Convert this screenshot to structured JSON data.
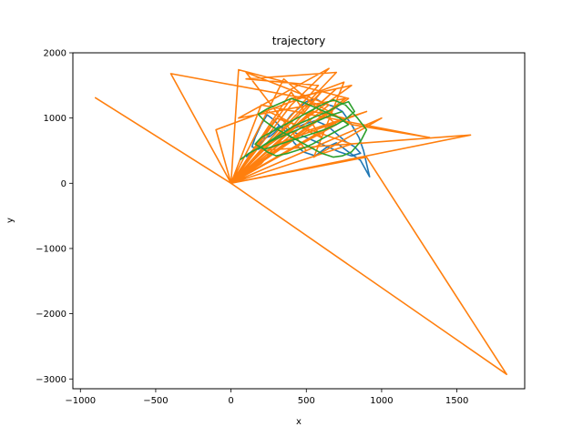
{
  "chart_data": {
    "type": "line",
    "title": "trajectory",
    "xlabel": "x",
    "ylabel": "y",
    "xlim": [
      -1050,
      1950
    ],
    "ylim": [
      -3150,
      2000
    ],
    "xticks": [
      -1000,
      -500,
      0,
      500,
      1000,
      1500
    ],
    "yticks": [
      -3000,
      -2000,
      -1000,
      0,
      1000,
      2000
    ],
    "xtick_labels": [
      "−1000",
      "−500",
      "0",
      "500",
      "1000",
      "1500"
    ],
    "ytick_labels": [
      "−3000",
      "−2000",
      "−1000",
      "0",
      "1000",
      "2000"
    ],
    "grid": false,
    "series": [
      {
        "color": "#1f77b4",
        "x": [
          100,
          150,
          200,
          260,
          300,
          350,
          400,
          450,
          500,
          560,
          620,
          680,
          740,
          800,
          850,
          880,
          900,
          920,
          860,
          780,
          700,
          640,
          560,
          480,
          420,
          380,
          330,
          280,
          240,
          200,
          160,
          140,
          180,
          240,
          320,
          400,
          480,
          560,
          640,
          700,
          760,
          820,
          860,
          800,
          720,
          640,
          560,
          480,
          400,
          320,
          260,
          200,
          160
        ],
        "y": [
          400,
          520,
          680,
          720,
          800,
          900,
          1050,
          1150,
          1250,
          1300,
          1220,
          1180,
          1100,
          900,
          700,
          500,
          300,
          100,
          350,
          480,
          620,
          560,
          420,
          480,
          620,
          760,
          860,
          980,
          1050,
          900,
          700,
          560,
          520,
          600,
          720,
          820,
          900,
          960,
          880,
          760,
          640,
          560,
          460,
          420,
          480,
          560,
          640,
          720,
          800,
          880,
          760,
          620,
          520
        ]
      },
      {
        "color": "#ff7f0e",
        "x": [
          0,
          -400,
          500,
          800,
          1320,
          200,
          0,
          1830,
          900,
          0,
          -900,
          0,
          1590,
          200,
          800,
          400,
          0,
          50,
          780,
          600,
          0,
          -100,
          750,
          550,
          1000,
          0,
          580,
          100,
          700,
          0,
          400,
          650,
          50,
          760,
          0,
          500,
          900,
          300,
          700,
          0,
          300,
          800,
          0,
          600,
          200,
          0,
          650,
          100,
          500,
          0,
          700,
          350,
          0,
          550,
          750,
          0,
          400,
          600,
          250
        ],
        "y": [
          0,
          1680,
          1300,
          900,
          700,
          1200,
          0,
          -2930,
          400,
          0,
          1310,
          0,
          740,
          500,
          1500,
          1300,
          0,
          1740,
          1300,
          1000,
          0,
          820,
          1550,
          400,
          1000,
          0,
          1500,
          1600,
          1700,
          0,
          1200,
          1760,
          1000,
          1300,
          0,
          800,
          1100,
          600,
          1450,
          0,
          1000,
          600,
          0,
          1400,
          300,
          0,
          1200,
          1700,
          500,
          0,
          900,
          1600,
          0,
          1100,
          1000,
          0,
          1400,
          700,
          1100
        ]
      },
      {
        "color": "#2ca02c",
        "x": [
          60,
          120,
          200,
          280,
          340,
          420,
          500,
          580,
          660,
          720,
          780,
          820,
          760,
          700,
          620,
          540,
          460,
          380,
          300,
          220,
          160,
          200,
          280,
          360,
          440,
          520,
          600,
          680,
          760,
          840,
          900,
          860,
          800,
          740,
          680,
          600,
          520,
          440,
          360,
          280,
          220,
          180,
          240,
          320,
          400,
          480,
          560,
          640,
          720,
          780,
          700,
          620,
          540,
          460,
          380,
          300,
          240,
          200,
          260,
          340,
          420,
          500,
          580,
          660,
          740
        ],
        "y": [
          360,
          460,
          560,
          680,
          760,
          880,
          960,
          1040,
          1120,
          1200,
          1250,
          1100,
          980,
          900,
          820,
          760,
          700,
          640,
          580,
          520,
          600,
          700,
          800,
          900,
          1000,
          1100,
          1200,
          1280,
          1200,
          1000,
          820,
          640,
          480,
          420,
          400,
          460,
          560,
          660,
          760,
          860,
          960,
          1060,
          1140,
          1220,
          1300,
          1240,
          1160,
          1080,
          1000,
          900,
          800,
          700,
          600,
          520,
          460,
          420,
          480,
          560,
          640,
          720,
          800,
          880,
          960,
          1040,
          1100
        ]
      }
    ]
  }
}
